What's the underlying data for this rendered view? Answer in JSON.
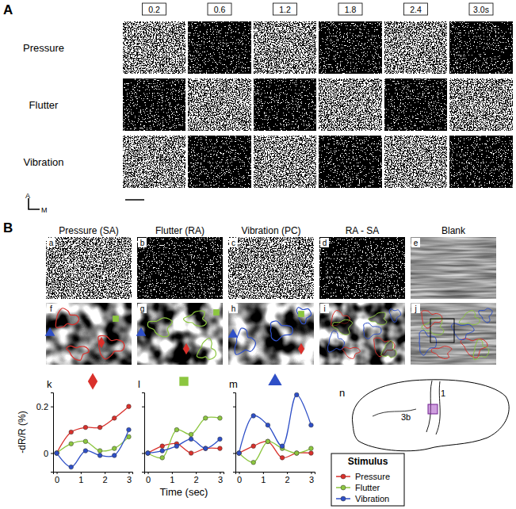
{
  "figure": {
    "panel_a": {
      "label": "A",
      "times": [
        "0.2",
        "0.6",
        "1.2",
        "1.8",
        "2.4",
        "3.0s"
      ],
      "rows": [
        "Pressure",
        "Flutter",
        "Vibration"
      ],
      "orientation": [
        "A",
        "M"
      ]
    },
    "panel_b": {
      "label": "B",
      "headers": [
        "Pressure (SA)",
        "Flutter (RA)",
        "Vibration (PC)",
        "RA - SA",
        "Blank"
      ],
      "top_letters": [
        "a",
        "b",
        "c",
        "d",
        "e"
      ],
      "bottom_letters": [
        "f",
        "g",
        "h",
        "i",
        "j"
      ],
      "brain_letter": "n",
      "brain_labels": [
        "1",
        "3b"
      ],
      "legend_title": "Stimulus"
    }
  },
  "chart_data": [
    {
      "type": "line",
      "title": "k",
      "ylabel": "-dR/R (%)",
      "x": [
        0,
        0.6,
        1.2,
        1.8,
        2.4,
        3.0
      ],
      "xlim": [
        -0.15,
        3.15
      ],
      "xticks": [
        0,
        1,
        2,
        3
      ],
      "ylim": [
        -0.08,
        0.26
      ],
      "yticks": [
        0,
        0.2
      ],
      "series": [
        {
          "name": "Pressure",
          "color": "#d9302b",
          "marker": "circle",
          "values": [
            0,
            0.09,
            0.11,
            0.11,
            0.15,
            0.2
          ]
        },
        {
          "name": "Flutter",
          "color": "#8cc63f",
          "marker": "circle",
          "values": [
            0,
            0.04,
            0.05,
            0.01,
            0.02,
            0.07
          ]
        },
        {
          "name": "Vibration",
          "color": "#2e4fc7",
          "marker": "circle",
          "values": [
            0,
            -0.06,
            0.01,
            -0.01,
            -0.01,
            0.1
          ]
        }
      ]
    },
    {
      "type": "line",
      "title": "l",
      "xlabel": "Time (sec)",
      "tick_labels": "x",
      "x": [
        0,
        0.6,
        1.2,
        1.8,
        2.4,
        3.0
      ],
      "xlim": [
        -0.15,
        3.15
      ],
      "xticks": [
        0,
        1,
        2,
        3
      ],
      "ylim": [
        -0.08,
        0.26
      ],
      "yticks": [
        0,
        0.2
      ],
      "series": [
        {
          "name": "Pressure",
          "color": "#d9302b",
          "marker": "circle",
          "values": [
            0,
            0.03,
            0.04,
            0.0,
            0.02,
            0.02
          ]
        },
        {
          "name": "Flutter",
          "color": "#8cc63f",
          "marker": "circle",
          "values": [
            0,
            -0.02,
            0.1,
            0.08,
            0.15,
            0.15
          ]
        },
        {
          "name": "Vibration",
          "color": "#2e4fc7",
          "marker": "circle",
          "values": [
            0,
            0.01,
            0.03,
            0.06,
            0.02,
            0.06
          ]
        }
      ]
    },
    {
      "type": "line",
      "title": "m",
      "tick_labels": "x",
      "legend": "right",
      "x": [
        0,
        0.6,
        1.2,
        1.8,
        2.4,
        3.0
      ],
      "xlim": [
        -0.15,
        3.15
      ],
      "xticks": [
        0,
        1,
        2,
        3
      ],
      "ylim": [
        -0.08,
        0.26
      ],
      "yticks": [
        0,
        0.2
      ],
      "series": [
        {
          "name": "Pressure",
          "color": "#d9302b",
          "marker": "circle",
          "values": [
            0,
            0.03,
            0.05,
            -0.02,
            0.0,
            0.0
          ]
        },
        {
          "name": "Flutter",
          "color": "#8cc63f",
          "marker": "circle",
          "values": [
            0,
            -0.04,
            0.05,
            0.02,
            0.0,
            0.02
          ]
        },
        {
          "name": "Vibration",
          "color": "#2e4fc7",
          "marker": "circle",
          "values": [
            0,
            0.16,
            0.12,
            0.03,
            0.25,
            0.12
          ]
        }
      ]
    }
  ]
}
